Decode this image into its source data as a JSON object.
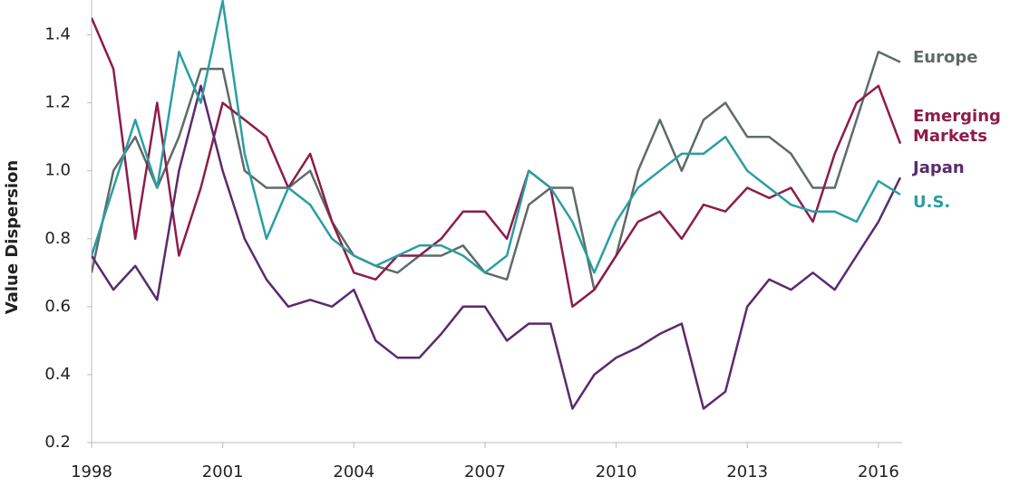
{
  "chart_data": {
    "type": "line",
    "y_label": "Value Dispersion",
    "x": [
      1998,
      1998.5,
      1999,
      1999.5,
      2000,
      2000.5,
      2001,
      2001.5,
      2002,
      2002.5,
      2003,
      2003.5,
      2004,
      2004.5,
      2005,
      2005.5,
      2006,
      2006.5,
      2007,
      2007.5,
      2008,
      2008.5,
      2009,
      2009.5,
      2010,
      2010.5,
      2011,
      2011.5,
      2012,
      2012.5,
      2013,
      2013.5,
      2014,
      2014.5,
      2015,
      2015.5,
      2016,
      2016.5
    ],
    "series": [
      {
        "name": "Europe",
        "color": "#5f6b68",
        "values": [
          0.7,
          1.0,
          1.1,
          0.95,
          1.1,
          1.3,
          1.3,
          1.0,
          0.95,
          0.95,
          1.0,
          0.85,
          0.75,
          0.72,
          0.7,
          0.75,
          0.75,
          0.78,
          0.7,
          0.68,
          0.9,
          0.95,
          0.95,
          0.65,
          0.75,
          1.0,
          1.15,
          1.0,
          1.15,
          1.2,
          1.1,
          1.1,
          1.05,
          0.95,
          0.95,
          1.15,
          1.35,
          1.32
        ]
      },
      {
        "name": "Emerging Markets",
        "color": "#8c1d4a",
        "values": [
          1.45,
          1.3,
          0.8,
          1.2,
          0.75,
          0.95,
          1.2,
          1.15,
          1.1,
          0.95,
          1.05,
          0.85,
          0.7,
          0.68,
          0.75,
          0.75,
          0.8,
          0.88,
          0.88,
          0.8,
          1.0,
          0.95,
          0.6,
          0.65,
          0.75,
          0.85,
          0.88,
          0.8,
          0.9,
          0.88,
          0.95,
          0.92,
          0.95,
          0.85,
          1.05,
          1.2,
          1.25,
          1.08
        ]
      },
      {
        "name": "Japan",
        "color": "#5b2a6e",
        "values": [
          0.75,
          0.65,
          0.72,
          0.62,
          1.0,
          1.25,
          1.0,
          0.8,
          0.68,
          0.6,
          0.62,
          0.6,
          0.65,
          0.5,
          0.45,
          0.45,
          0.52,
          0.6,
          0.6,
          0.5,
          0.55,
          0.55,
          0.3,
          0.4,
          0.45,
          0.48,
          0.52,
          0.55,
          0.3,
          0.35,
          0.6,
          0.68,
          0.65,
          0.7,
          0.65,
          0.75,
          0.85,
          0.98
        ]
      },
      {
        "name": "U.S.",
        "color": "#2a9ea3",
        "values": [
          0.75,
          0.95,
          1.15,
          0.95,
          1.35,
          1.2,
          1.5,
          1.05,
          0.8,
          0.95,
          0.9,
          0.8,
          0.75,
          0.72,
          0.75,
          0.78,
          0.78,
          0.75,
          0.7,
          0.75,
          1.0,
          0.95,
          0.85,
          0.7,
          0.85,
          0.95,
          1.0,
          1.05,
          1.05,
          1.1,
          1.0,
          0.95,
          0.9,
          0.88,
          0.88,
          0.85,
          0.97,
          0.93
        ]
      }
    ],
    "xlim": [
      1998,
      2016.5
    ],
    "xticks": [
      1998,
      2001,
      2004,
      2007,
      2010,
      2013,
      2016
    ],
    "ylim": [
      0.2,
      1.5
    ],
    "yticks": [
      {
        "value": 0.2,
        "label": "0.2"
      },
      {
        "value": 0.4,
        "label": "0.4"
      },
      {
        "value": 0.6,
        "label": "0.6"
      },
      {
        "value": 0.8,
        "label": "0.8"
      },
      {
        "value": 1.0,
        "label": "1.0"
      },
      {
        "value": 1.2,
        "label": "1.2"
      },
      {
        "value": 1.4,
        "label": "1.4"
      }
    ],
    "grid": false
  }
}
